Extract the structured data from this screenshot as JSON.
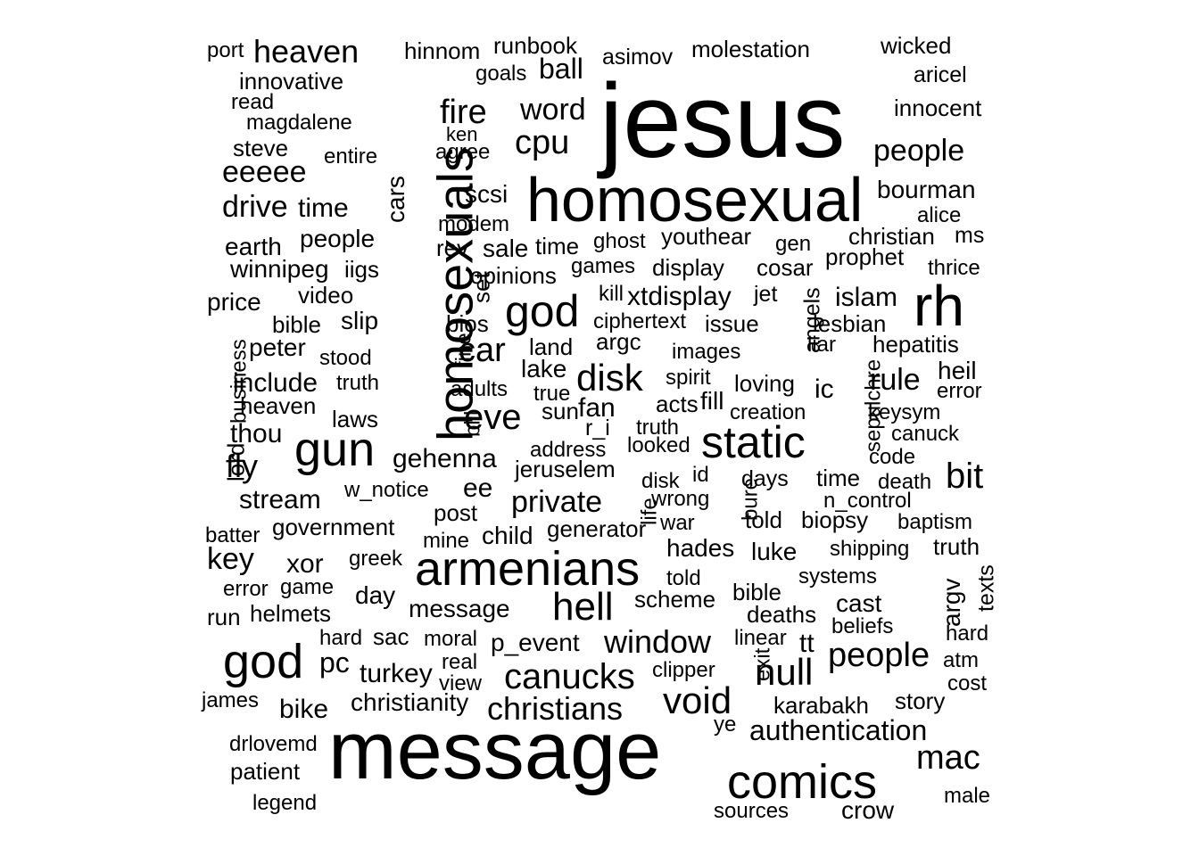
{
  "chart_data": {
    "type": "wordcloud",
    "color": "#000000",
    "words": [
      "jesus",
      "message",
      "homosexual",
      "homosexuals",
      "armenians",
      "comics",
      "static",
      "gun",
      "god",
      "god",
      "rh",
      "heaven",
      "fire",
      "word",
      "cpu",
      "people",
      "molestation",
      "wicked",
      "innocent",
      "aricel",
      "hinnom",
      "runbook",
      "asimov",
      "ball",
      "goals",
      "port",
      "innovative",
      "read",
      "magdalene",
      "steve",
      "entire",
      "eeeee",
      "ken",
      "agree",
      "scsi",
      "bourman",
      "alice",
      "drive",
      "time",
      "cars",
      "modem",
      "rev",
      "sale",
      "time",
      "ghost",
      "youthear",
      "gen",
      "christian",
      "ms",
      "earth",
      "people",
      "winnipeg",
      "iigs",
      "set",
      "opinions",
      "games",
      "display",
      "cosar",
      "prophet",
      "thrice",
      "price",
      "video",
      "kill",
      "xtdisplay",
      "jet",
      "islam",
      "bible",
      "slip",
      "bios",
      "car",
      "ciphertext",
      "issue",
      "angels",
      "lesbian",
      "peter",
      "fine",
      "land",
      "argc",
      "images",
      "liar",
      "hepatitis",
      "business",
      "stood",
      "lake",
      "disk",
      "spirit",
      "sepulchre",
      "include",
      "truth",
      "adults",
      "true",
      "loving",
      "ic",
      "rule",
      "heil",
      "error",
      "heaven",
      "eve",
      "acts",
      "fill",
      "sun",
      "fan",
      "creation",
      "keysym",
      "laws",
      "thou",
      "bill",
      "r_i",
      "truth",
      "canuck",
      "lord",
      "fly",
      "gehenna",
      "address",
      "looked",
      "code",
      "jeruselem",
      "disk",
      "id",
      "days",
      "time",
      "death",
      "bit",
      "stream",
      "w_notice",
      "ee",
      "life",
      "wrong",
      "bure",
      "n_control",
      "private",
      "post",
      "war",
      "told",
      "biopsy",
      "baptism",
      "batter",
      "government",
      "child",
      "generator",
      "mine",
      "shipping",
      "truth",
      "key",
      "xor",
      "greek",
      "hades",
      "luke",
      "texts",
      "systems",
      "argv",
      "told",
      "error",
      "game",
      "day",
      "hell",
      "scheme",
      "bible",
      "cast",
      "run",
      "helmets",
      "message",
      "deaths",
      "beliefs",
      "hard",
      "sac",
      "moral",
      "p_event",
      "window",
      "linear",
      "tt",
      "hard",
      "exit",
      "people",
      "atm",
      "pc",
      "real",
      "turkey",
      "clipper",
      "null",
      "cost",
      "view",
      "canucks",
      "james",
      "bike",
      "christianity",
      "christians",
      "void",
      "karabakh",
      "story",
      "drlovemd",
      "ye",
      "authentication",
      "mac",
      "patient",
      "legend",
      "sources",
      "crow",
      "male"
    ]
  }
}
